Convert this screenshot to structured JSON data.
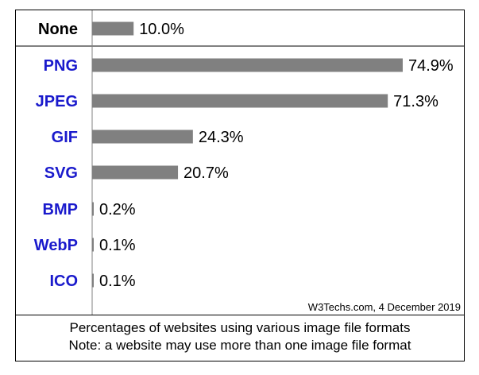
{
  "chart_data": {
    "type": "bar",
    "orientation": "horizontal",
    "categories": [
      "None",
      "PNG",
      "JPEG",
      "GIF",
      "SVG",
      "BMP",
      "WebP",
      "ICO"
    ],
    "values": [
      10.0,
      74.9,
      71.3,
      24.3,
      20.7,
      0.2,
      0.1,
      0.1
    ],
    "value_labels": [
      "10.0%",
      "74.9%",
      "71.3%",
      "24.3%",
      "20.7%",
      "0.2%",
      "0.1%",
      "0.1%"
    ],
    "label_colors": [
      "#000000",
      "#1a1acc",
      "#1a1acc",
      "#1a1acc",
      "#1a1acc",
      "#1a1acc",
      "#1a1acc",
      "#1a1acc"
    ],
    "bar_color": "#808080",
    "xlim": [
      0,
      100
    ],
    "grid": false,
    "source": "W3Techs.com, 4 December 2019"
  },
  "caption": {
    "line1": "Percentages of websites using various image file formats",
    "line2": "Note: a website may use more than one image file format"
  }
}
